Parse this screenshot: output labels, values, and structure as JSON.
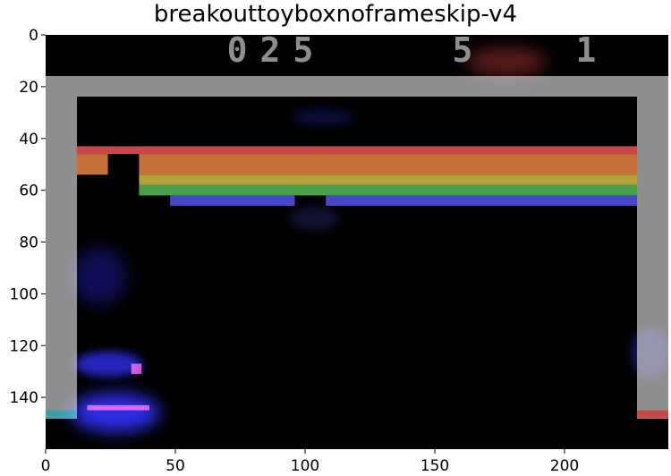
{
  "title": "breakouttoyboxnoframeskip-v4",
  "hud": {
    "score": "025",
    "lives": "5",
    "player": "1"
  },
  "axes": {
    "x_ticks": [
      "0",
      "50",
      "100",
      "150",
      "200"
    ],
    "y_ticks": [
      "0",
      "20",
      "40",
      "60",
      "80",
      "100",
      "120",
      "140"
    ]
  },
  "colors": {
    "background": "#000000",
    "wall": "#8e8e8e",
    "hud": "#8e8e8e",
    "brick_rows": [
      "#c84848",
      "#c6703a",
      "#b4a23a",
      "#a2a22a",
      "#48a048",
      "#4848c8"
    ],
    "paddle": "#c84ec8",
    "ball": "#c84ec8",
    "saliency_blue": "#3030ff",
    "saliency_red": "#ff5050"
  },
  "game": {
    "grid": {
      "width": 240,
      "height": 160
    },
    "wall": {
      "top_y0": 16,
      "top_y1": 24,
      "left_x0": 0,
      "left_x1": 12,
      "right_x0": 228,
      "right_x1": 240,
      "bottom_y": 146
    },
    "brick_rows": [
      {
        "y0": 43,
        "y1": 46,
        "segments": [
          [
            12,
            228
          ]
        ]
      },
      {
        "y0": 46,
        "y1": 54,
        "segments": [
          [
            12,
            24
          ],
          [
            36,
            228
          ]
        ]
      },
      {
        "y0": 54,
        "y1": 58,
        "segments": [
          [
            36,
            228
          ]
        ]
      },
      {
        "y0": 58,
        "y1": 62,
        "segments": [
          [
            36,
            228
          ]
        ]
      },
      {
        "y0": 62,
        "y1": 66,
        "segments": [
          [
            48,
            96
          ],
          [
            108,
            228
          ]
        ]
      }
    ],
    "paddle": {
      "x0": 16,
      "x1": 40,
      "y0": 143,
      "y1": 145
    },
    "ball": {
      "x0": 33,
      "x1": 37,
      "y0": 127,
      "y1": 131
    },
    "wall_markers": [
      {
        "x0": 0,
        "x1": 12,
        "y0": 145,
        "y1": 148,
        "color": "#3aa0a8"
      },
      {
        "x0": 228,
        "x1": 240,
        "y0": 145,
        "y1": 148,
        "color": "#c84848"
      }
    ]
  }
}
